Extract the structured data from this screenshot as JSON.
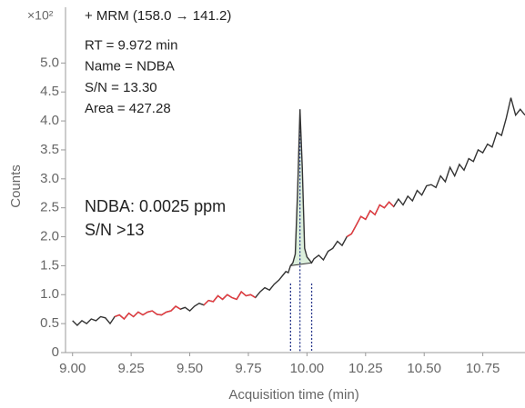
{
  "chart_data": {
    "type": "line",
    "y_multiplier": "×10²",
    "y_label": "Counts",
    "x_label": "Acquisition time (min)",
    "annotations": [
      "+ MRM (158.0 → 141.2)",
      "RT = 9.972 min",
      "Name = NDBA",
      "S/N = 13.30",
      "Area = 427.28"
    ],
    "result_text": [
      "NDBA: 0.0025 ppm",
      "S/N >13"
    ],
    "xlim": [
      8.97,
      10.93
    ],
    "ylim": [
      0,
      5.9
    ],
    "xticks": [
      {
        "value": 9,
        "label": "9.00"
      },
      9.25,
      {
        "value": 9.5,
        "label": "9.50"
      },
      9.75,
      {
        "value": 10,
        "label": "10.00"
      },
      10.25,
      {
        "value": 10.5,
        "label": "10.50"
      },
      10.75
    ],
    "yticks": [
      0,
      0.5,
      {
        "value": 1,
        "label": "1.0"
      },
      1.5,
      {
        "value": 2,
        "label": "2.0"
      },
      2.5,
      {
        "value": 3,
        "label": "3.0"
      },
      3.5,
      {
        "value": 4,
        "label": "4.0"
      },
      4.5,
      {
        "value": 5,
        "label": "5.0"
      }
    ],
    "x": [
      9.0,
      9.02,
      9.04,
      9.06,
      9.08,
      9.1,
      9.12,
      9.14,
      9.16,
      9.18,
      9.2,
      9.22,
      9.24,
      9.26,
      9.28,
      9.3,
      9.32,
      9.34,
      9.36,
      9.38,
      9.4,
      9.42,
      9.44,
      9.46,
      9.48,
      9.5,
      9.52,
      9.54,
      9.56,
      9.58,
      9.6,
      9.62,
      9.64,
      9.66,
      9.68,
      9.7,
      9.72,
      9.74,
      9.76,
      9.78,
      9.8,
      9.82,
      9.84,
      9.86,
      9.88,
      9.9,
      9.91,
      9.92,
      9.93,
      9.94,
      9.95,
      9.96,
      9.97,
      9.98,
      9.99,
      10.0,
      10.01,
      10.02,
      10.03,
      10.05,
      10.07,
      10.09,
      10.11,
      10.13,
      10.15,
      10.17,
      10.19,
      10.21,
      10.23,
      10.25,
      10.27,
      10.29,
      10.31,
      10.33,
      10.35,
      10.37,
      10.39,
      10.41,
      10.43,
      10.45,
      10.47,
      10.49,
      10.51,
      10.53,
      10.55,
      10.57,
      10.59,
      10.61,
      10.63,
      10.65,
      10.67,
      10.69,
      10.71,
      10.73,
      10.75,
      10.77,
      10.79,
      10.81,
      10.83,
      10.85,
      10.87,
      10.89,
      10.91,
      10.93
    ],
    "series": [
      {
        "color": "#333333",
        "values": [
          0.55,
          0.47,
          0.55,
          0.5,
          0.58,
          0.55,
          0.62,
          0.6,
          0.5,
          0.62,
          0.65,
          0.58,
          0.68,
          0.62,
          0.7,
          0.65,
          0.7,
          0.72,
          0.66,
          0.65,
          0.7,
          0.72,
          0.8,
          0.75,
          0.78,
          0.72,
          0.8,
          0.85,
          0.82,
          0.9,
          0.88,
          0.98,
          0.92,
          1.0,
          0.95,
          0.92,
          1.05,
          0.98,
          1.0,
          0.95,
          1.05,
          1.12,
          1.08,
          1.18,
          1.25,
          1.35,
          1.4,
          1.38,
          1.5,
          1.55,
          1.7,
          2.8,
          4.2,
          3.2,
          1.8,
          1.65,
          1.6,
          1.55,
          1.62,
          1.68,
          1.6,
          1.75,
          1.8,
          1.92,
          1.85,
          2.0,
          2.05,
          2.2,
          2.35,
          2.3,
          2.45,
          2.38,
          2.55,
          2.5,
          2.6,
          2.52,
          2.65,
          2.55,
          2.7,
          2.62,
          2.8,
          2.72,
          2.88,
          2.9,
          2.85,
          3.05,
          2.95,
          3.2,
          3.05,
          3.25,
          3.15,
          3.35,
          3.3,
          3.5,
          3.45,
          3.6,
          3.55,
          3.8,
          3.75,
          4.05,
          4.4,
          4.1,
          4.2,
          4.1
        ]
      }
    ],
    "highlight_color": "#e8383d",
    "highlight_ranges": [
      [
        9.18,
        9.46
      ],
      [
        9.56,
        9.78
      ],
      [
        10.17,
        10.37
      ]
    ],
    "peak": {
      "start": 9.93,
      "apex": 9.97,
      "end": 10.02,
      "marker_color": "#2b3a8c",
      "fill": "#dcefdc"
    }
  }
}
